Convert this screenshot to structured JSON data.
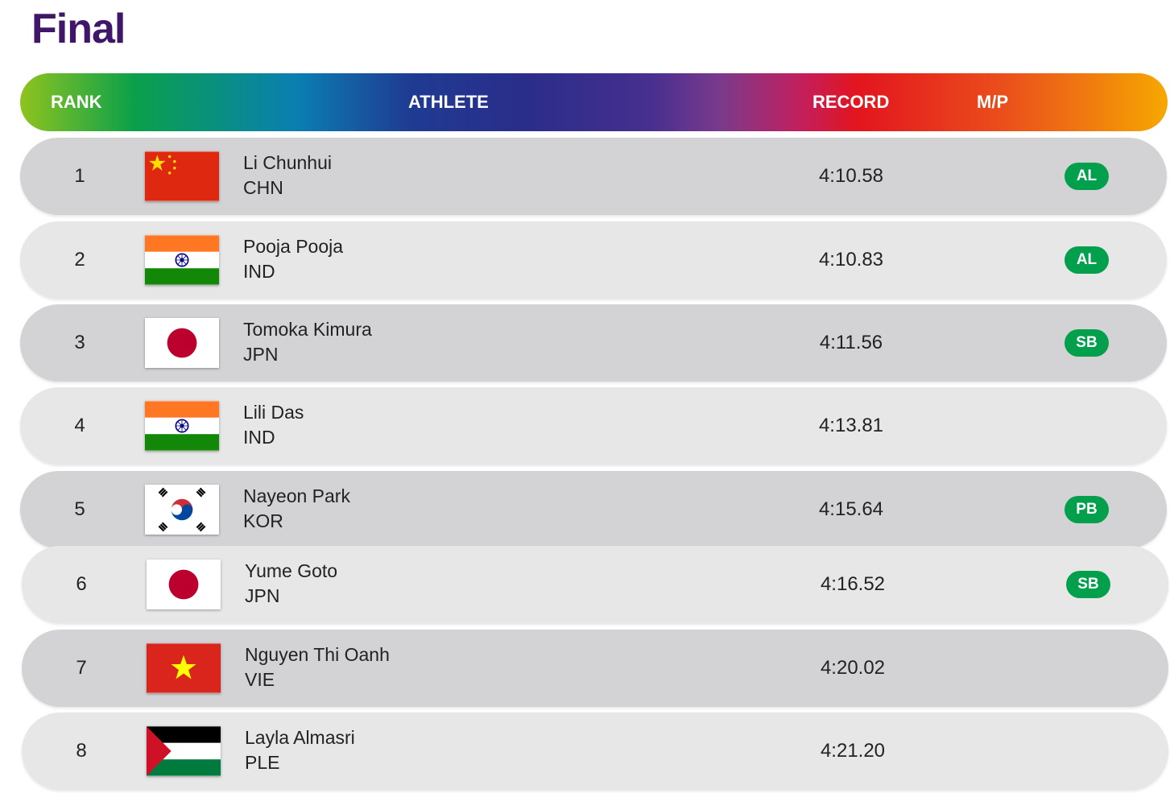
{
  "page": {
    "title": "Final"
  },
  "header": {
    "rank": "RANK",
    "athlete": "ATHLETE",
    "record": "RECORD",
    "mp": "M/P"
  },
  "results": [
    {
      "rank": "1",
      "name": "Li Chunhui",
      "country": "CHN",
      "record": "4:10.58",
      "mp": "AL",
      "flag": "china-flag"
    },
    {
      "rank": "2",
      "name": "Pooja Pooja",
      "country": "IND",
      "record": "4:10.83",
      "mp": "AL",
      "flag": "india-flag"
    },
    {
      "rank": "3",
      "name": "Tomoka Kimura",
      "country": "JPN",
      "record": "4:11.56",
      "mp": "SB",
      "flag": "japan-flag"
    },
    {
      "rank": "4",
      "name": "Lili Das",
      "country": "IND",
      "record": "4:13.81",
      "mp": "",
      "flag": "india-flag"
    },
    {
      "rank": "5",
      "name": "Nayeon Park",
      "country": "KOR",
      "record": "4:15.64",
      "mp": "PB",
      "flag": "korea-flag"
    },
    {
      "rank": "6",
      "name": "Yume Goto",
      "country": "JPN",
      "record": "4:16.52",
      "mp": "SB",
      "flag": "japan-flag"
    },
    {
      "rank": "7",
      "name": "Nguyen Thi Oanh",
      "country": "VIE",
      "record": "4:20.02",
      "mp": "",
      "flag": "vietnam-flag"
    },
    {
      "rank": "8",
      "name": "Layla Almasri",
      "country": "PLE",
      "record": "4:21.20",
      "mp": "",
      "flag": "palestine-flag"
    }
  ],
  "colors": {
    "title": "#3f1668",
    "badge": "#02a04d",
    "row_dark": "#d3d2d5",
    "row_light": "#e7e7e8"
  }
}
